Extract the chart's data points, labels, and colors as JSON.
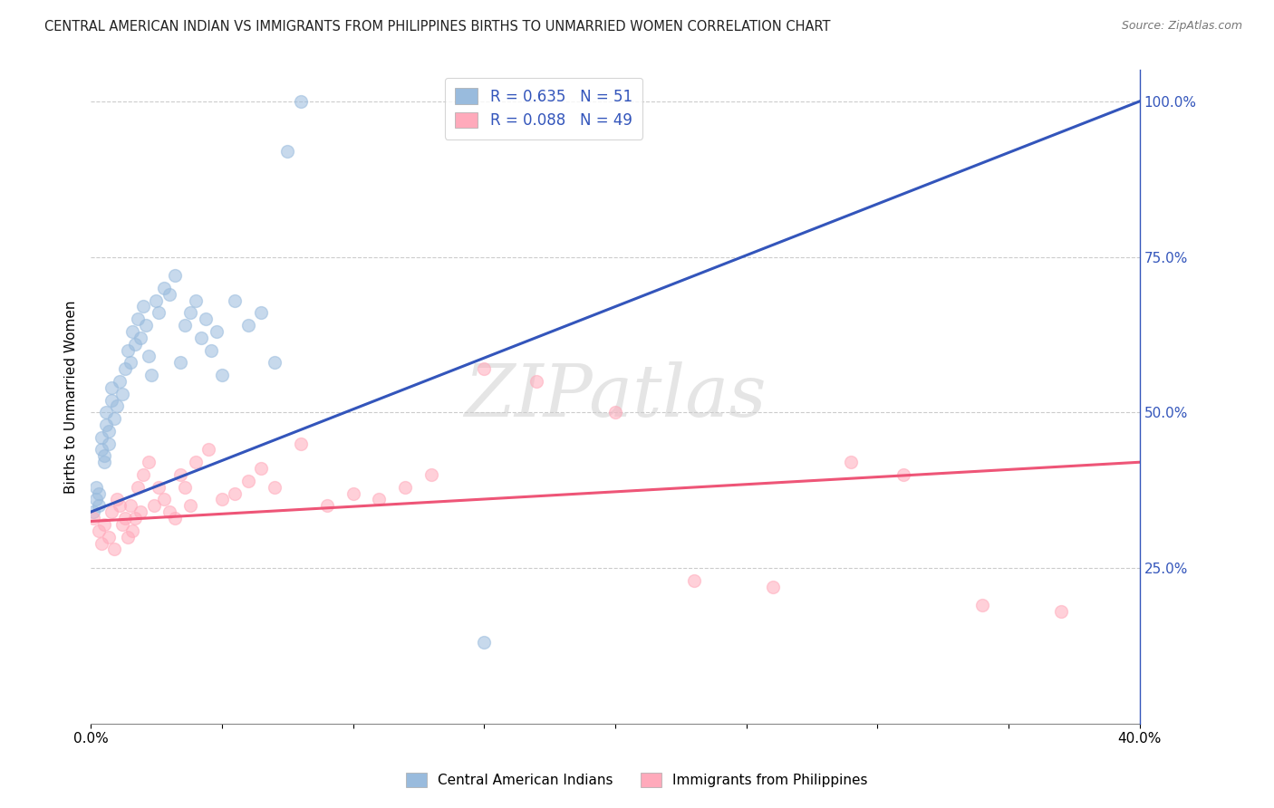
{
  "title": "CENTRAL AMERICAN INDIAN VS IMMIGRANTS FROM PHILIPPINES BIRTHS TO UNMARRIED WOMEN CORRELATION CHART",
  "source": "Source: ZipAtlas.com",
  "ylabel": "Births to Unmarried Women",
  "legend_label_blue": "Central American Indians",
  "legend_label_pink": "Immigrants from Philippines",
  "legend_R_blue": "R = 0.635",
  "legend_N_blue": "N = 51",
  "legend_R_pink": "R = 0.088",
  "legend_N_pink": "N = 49",
  "blue_color": "#99BBDD",
  "pink_color": "#FFAABB",
  "blue_line_color": "#3355BB",
  "pink_line_color": "#EE5577",
  "watermark": "ZIPatlas",
  "blue_x": [
    0.001,
    0.002,
    0.002,
    0.003,
    0.003,
    0.004,
    0.004,
    0.005,
    0.005,
    0.006,
    0.006,
    0.007,
    0.007,
    0.008,
    0.008,
    0.009,
    0.01,
    0.011,
    0.012,
    0.013,
    0.014,
    0.015,
    0.016,
    0.017,
    0.018,
    0.019,
    0.02,
    0.021,
    0.022,
    0.023,
    0.025,
    0.026,
    0.028,
    0.03,
    0.032,
    0.034,
    0.036,
    0.038,
    0.04,
    0.042,
    0.044,
    0.046,
    0.048,
    0.05,
    0.055,
    0.06,
    0.065,
    0.07,
    0.075,
    0.08,
    0.15
  ],
  "blue_y": [
    0.34,
    0.36,
    0.38,
    0.35,
    0.37,
    0.44,
    0.46,
    0.42,
    0.43,
    0.48,
    0.5,
    0.45,
    0.47,
    0.52,
    0.54,
    0.49,
    0.51,
    0.55,
    0.53,
    0.57,
    0.6,
    0.58,
    0.63,
    0.61,
    0.65,
    0.62,
    0.67,
    0.64,
    0.59,
    0.56,
    0.68,
    0.66,
    0.7,
    0.69,
    0.72,
    0.58,
    0.64,
    0.66,
    0.68,
    0.62,
    0.65,
    0.6,
    0.63,
    0.56,
    0.68,
    0.64,
    0.66,
    0.58,
    0.92,
    1.0,
    0.13
  ],
  "pink_x": [
    0.001,
    0.003,
    0.004,
    0.005,
    0.007,
    0.008,
    0.009,
    0.01,
    0.011,
    0.012,
    0.013,
    0.014,
    0.015,
    0.016,
    0.017,
    0.018,
    0.019,
    0.02,
    0.022,
    0.024,
    0.026,
    0.028,
    0.03,
    0.032,
    0.034,
    0.036,
    0.038,
    0.04,
    0.045,
    0.05,
    0.055,
    0.06,
    0.065,
    0.07,
    0.08,
    0.09,
    0.1,
    0.11,
    0.12,
    0.13,
    0.15,
    0.17,
    0.2,
    0.23,
    0.26,
    0.29,
    0.31,
    0.34,
    0.37
  ],
  "pink_y": [
    0.33,
    0.31,
    0.29,
    0.32,
    0.3,
    0.34,
    0.28,
    0.36,
    0.35,
    0.32,
    0.33,
    0.3,
    0.35,
    0.31,
    0.33,
    0.38,
    0.34,
    0.4,
    0.42,
    0.35,
    0.38,
    0.36,
    0.34,
    0.33,
    0.4,
    0.38,
    0.35,
    0.42,
    0.44,
    0.36,
    0.37,
    0.39,
    0.41,
    0.38,
    0.45,
    0.35,
    0.37,
    0.36,
    0.38,
    0.4,
    0.57,
    0.55,
    0.5,
    0.23,
    0.22,
    0.42,
    0.4,
    0.19,
    0.18
  ],
  "xmin": 0.0,
  "xmax": 0.4,
  "ymin": 0.0,
  "ymax": 1.05,
  "blue_line_x0": 0.0,
  "blue_line_y0": 0.34,
  "blue_line_x1": 0.4,
  "blue_line_y1": 1.0,
  "pink_line_x0": 0.0,
  "pink_line_y0": 0.325,
  "pink_line_x1": 0.4,
  "pink_line_y1": 0.42
}
